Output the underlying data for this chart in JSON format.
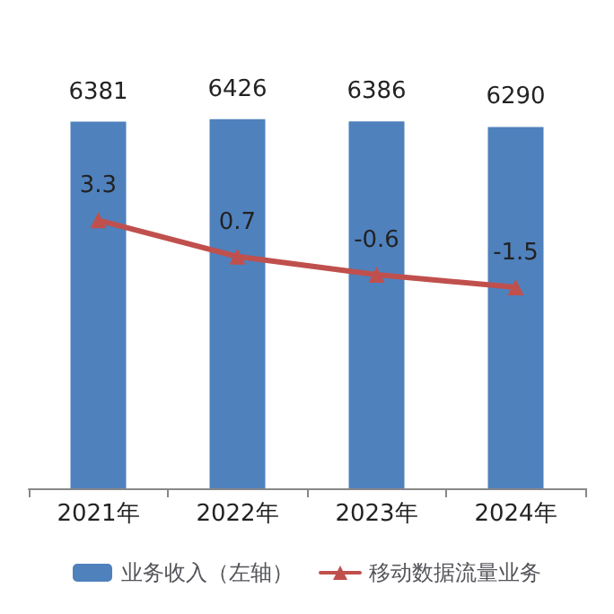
{
  "chart_data": {
    "type": "bar",
    "categories": [
      "2021年",
      "2022年",
      "2023年",
      "2024年"
    ],
    "series": [
      {
        "name": "业务收入（左轴）",
        "color": "#4f81bd",
        "values": [
          6381,
          6426,
          6386,
          6290
        ]
      },
      {
        "name": "移动数据流量业务",
        "type": "line",
        "axis": "y2",
        "color": "#c0504d",
        "values": [
          3.3,
          0.7,
          -0.6,
          -1.5
        ]
      }
    ],
    "tick_labels": "x",
    "data_labels": true,
    "legend": "bottom",
    "marker": "triangle",
    "line_style": "solid",
    "grid": false
  }
}
